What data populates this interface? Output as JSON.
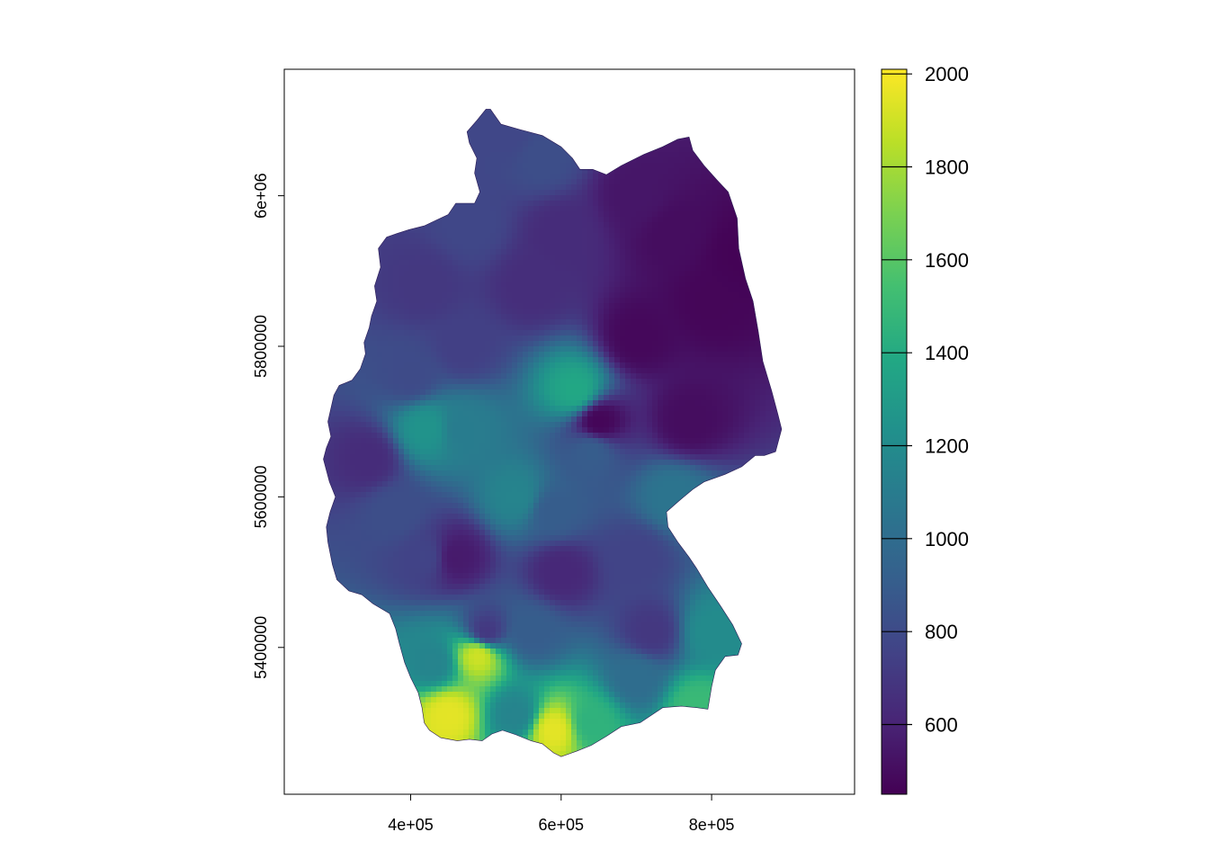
{
  "chart_data": {
    "type": "heatmap",
    "title": "",
    "xlabel": "",
    "ylabel": "",
    "x_range": [
      232000,
      990000
    ],
    "y_range": [
      5205000,
      6168000
    ],
    "x_ticks": [
      {
        "value": 400000,
        "label": "4e+05"
      },
      {
        "value": 600000,
        "label": "6e+05"
      },
      {
        "value": 800000,
        "label": "8e+05"
      }
    ],
    "y_ticks": [
      {
        "value": 5400000,
        "label": "5400000"
      },
      {
        "value": 5600000,
        "label": "5600000"
      },
      {
        "value": 5800000,
        "label": "5800000"
      },
      {
        "value": 6000000,
        "label": "6e+06"
      }
    ],
    "legend": {
      "placement": "right",
      "range": [
        450,
        2010
      ],
      "ticks": [
        600,
        800,
        1000,
        1200,
        1400,
        1600,
        1800,
        2000
      ],
      "tick_labels": [
        "600",
        "800",
        "1000",
        "1200",
        "1400",
        "1600",
        "1800",
        "2000"
      ],
      "colors": [
        "#440154",
        "#482576",
        "#414487",
        "#35608D",
        "#2A788E",
        "#21908C",
        "#22A884",
        "#43BF71",
        "#7AD151",
        "#BBDF27",
        "#FDE725"
      ]
    },
    "colormap": "viridis",
    "grid": false,
    "region_outline": [
      [
        506000,
        6115000
      ],
      [
        520000,
        6095000
      ],
      [
        545000,
        6088000
      ],
      [
        575000,
        6080000
      ],
      [
        600000,
        6065000
      ],
      [
        615000,
        6050000
      ],
      [
        625000,
        6035000
      ],
      [
        642000,
        6035000
      ],
      [
        660000,
        6028000
      ],
      [
        680000,
        6040000
      ],
      [
        710000,
        6055000
      ],
      [
        735000,
        6065000
      ],
      [
        755000,
        6075000
      ],
      [
        770000,
        6078000
      ],
      [
        775000,
        6060000
      ],
      [
        790000,
        6040000
      ],
      [
        808000,
        6020000
      ],
      [
        822000,
        6005000
      ],
      [
        834000,
        5970000
      ],
      [
        836000,
        5930000
      ],
      [
        845000,
        5890000
      ],
      [
        855000,
        5860000
      ],
      [
        862000,
        5820000
      ],
      [
        868000,
        5780000
      ],
      [
        880000,
        5740000
      ],
      [
        888000,
        5710000
      ],
      [
        893000,
        5690000
      ],
      [
        885000,
        5660000
      ],
      [
        870000,
        5655000
      ],
      [
        858000,
        5655000
      ],
      [
        840000,
        5640000
      ],
      [
        818000,
        5630000
      ],
      [
        790000,
        5620000
      ],
      [
        775000,
        5610000
      ],
      [
        757000,
        5595000
      ],
      [
        740000,
        5580000
      ],
      [
        742000,
        5560000
      ],
      [
        755000,
        5540000
      ],
      [
        770000,
        5520000
      ],
      [
        780000,
        5505000
      ],
      [
        795000,
        5480000
      ],
      [
        812000,
        5455000
      ],
      [
        828000,
        5430000
      ],
      [
        840000,
        5405000
      ],
      [
        835000,
        5390000
      ],
      [
        818000,
        5388000
      ],
      [
        805000,
        5370000
      ],
      [
        800000,
        5348000
      ],
      [
        795000,
        5318000
      ],
      [
        780000,
        5320000
      ],
      [
        760000,
        5322000
      ],
      [
        735000,
        5320000
      ],
      [
        705000,
        5300000
      ],
      [
        680000,
        5295000
      ],
      [
        660000,
        5282000
      ],
      [
        640000,
        5270000
      ],
      [
        620000,
        5262000
      ],
      [
        600000,
        5255000
      ],
      [
        590000,
        5260000
      ],
      [
        575000,
        5272000
      ],
      [
        560000,
        5276000
      ],
      [
        540000,
        5284000
      ],
      [
        522000,
        5290000
      ],
      [
        508000,
        5285000
      ],
      [
        495000,
        5276000
      ],
      [
        478000,
        5278000
      ],
      [
        462000,
        5276000
      ],
      [
        440000,
        5280000
      ],
      [
        425000,
        5290000
      ],
      [
        418000,
        5300000
      ],
      [
        415000,
        5320000
      ],
      [
        410000,
        5340000
      ],
      [
        400000,
        5360000
      ],
      [
        392000,
        5380000
      ],
      [
        385000,
        5405000
      ],
      [
        380000,
        5425000
      ],
      [
        372000,
        5445000
      ],
      [
        350000,
        5458000
      ],
      [
        335000,
        5470000
      ],
      [
        318000,
        5475000
      ],
      [
        302000,
        5490000
      ],
      [
        296000,
        5510000
      ],
      [
        290000,
        5540000
      ],
      [
        288000,
        5560000
      ],
      [
        293000,
        5580000
      ],
      [
        300000,
        5600000
      ],
      [
        292000,
        5620000
      ],
      [
        284000,
        5650000
      ],
      [
        288000,
        5665000
      ],
      [
        294000,
        5680000
      ],
      [
        290000,
        5700000
      ],
      [
        298000,
        5735000
      ],
      [
        305000,
        5748000
      ],
      [
        322000,
        5755000
      ],
      [
        333000,
        5770000
      ],
      [
        340000,
        5790000
      ],
      [
        338000,
        5805000
      ],
      [
        345000,
        5825000
      ],
      [
        348000,
        5840000
      ],
      [
        355000,
        5860000
      ],
      [
        352000,
        5880000
      ],
      [
        360000,
        5905000
      ],
      [
        357000,
        5930000
      ],
      [
        368000,
        5945000
      ],
      [
        382000,
        5950000
      ],
      [
        398000,
        5955000
      ],
      [
        418000,
        5960000
      ],
      [
        435000,
        5968000
      ],
      [
        450000,
        5975000
      ],
      [
        460000,
        5990000
      ],
      [
        485000,
        5990000
      ],
      [
        492000,
        6005000
      ],
      [
        485000,
        6030000
      ],
      [
        488000,
        6050000
      ],
      [
        478000,
        6070000
      ],
      [
        475000,
        6085000
      ],
      [
        488000,
        6100000
      ],
      [
        500000,
        6115000
      ]
    ],
    "value_fields": [
      {
        "x": 840000,
        "y": 5920000,
        "value": 460
      },
      {
        "x": 800000,
        "y": 5860000,
        "value": 470
      },
      {
        "x": 700000,
        "y": 5810000,
        "value": 480
      },
      {
        "x": 650000,
        "y": 5700000,
        "value": 470
      },
      {
        "x": 770000,
        "y": 5700000,
        "value": 500
      },
      {
        "x": 700000,
        "y": 6000000,
        "value": 540
      },
      {
        "x": 750000,
        "y": 5950000,
        "value": 500
      },
      {
        "x": 600000,
        "y": 5950000,
        "value": 640
      },
      {
        "x": 530000,
        "y": 6080000,
        "value": 780
      },
      {
        "x": 575000,
        "y": 6050000,
        "value": 820
      },
      {
        "x": 480000,
        "y": 5960000,
        "value": 780
      },
      {
        "x": 420000,
        "y": 5880000,
        "value": 700
      },
      {
        "x": 560000,
        "y": 5880000,
        "value": 650
      },
      {
        "x": 470000,
        "y": 5800000,
        "value": 740
      },
      {
        "x": 400000,
        "y": 5760000,
        "value": 800
      },
      {
        "x": 420000,
        "y": 5690000,
        "value": 1250
      },
      {
        "x": 470000,
        "y": 5690000,
        "value": 1100
      },
      {
        "x": 345000,
        "y": 5650000,
        "value": 640
      },
      {
        "x": 380000,
        "y": 5580000,
        "value": 820
      },
      {
        "x": 420000,
        "y": 5520000,
        "value": 760
      },
      {
        "x": 460000,
        "y": 5520000,
        "value": 560
      },
      {
        "x": 540000,
        "y": 5600000,
        "value": 1150
      },
      {
        "x": 590000,
        "y": 5580000,
        "value": 900
      },
      {
        "x": 620000,
        "y": 5740000,
        "value": 1380
      },
      {
        "x": 640000,
        "y": 5660000,
        "value": 900
      },
      {
        "x": 600000,
        "y": 5500000,
        "value": 620
      },
      {
        "x": 560000,
        "y": 5420000,
        "value": 900
      },
      {
        "x": 500000,
        "y": 5420000,
        "value": 700
      },
      {
        "x": 700000,
        "y": 5520000,
        "value": 760
      },
      {
        "x": 720000,
        "y": 5420000,
        "value": 700
      },
      {
        "x": 800000,
        "y": 5420000,
        "value": 1200
      },
      {
        "x": 750000,
        "y": 5600000,
        "value": 1050
      },
      {
        "x": 700000,
        "y": 5360000,
        "value": 1000
      },
      {
        "x": 640000,
        "y": 5300000,
        "value": 1450
      },
      {
        "x": 590000,
        "y": 5290000,
        "value": 1950
      },
      {
        "x": 540000,
        "y": 5310000,
        "value": 1150
      },
      {
        "x": 780000,
        "y": 5320000,
        "value": 1500
      },
      {
        "x": 490000,
        "y": 5390000,
        "value": 1900
      },
      {
        "x": 450000,
        "y": 5310000,
        "value": 1950
      },
      {
        "x": 430000,
        "y": 5380000,
        "value": 1150
      }
    ]
  }
}
